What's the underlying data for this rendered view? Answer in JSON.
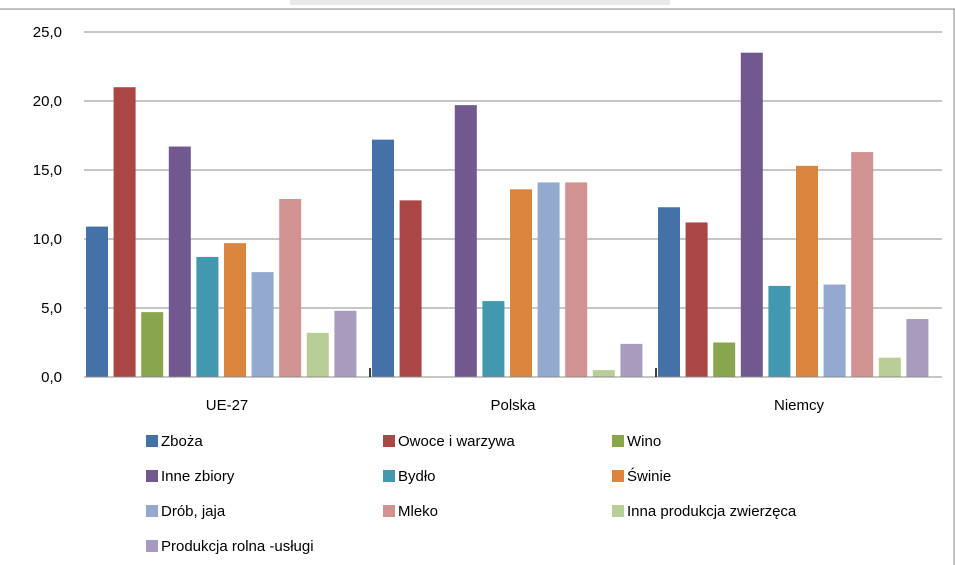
{
  "chart_data": {
    "type": "bar",
    "categories": [
      "UE-27",
      "Polska",
      "Niemcy"
    ],
    "ylim": [
      0,
      25
    ],
    "yticks": [
      "0,0",
      "5,0",
      "10,0",
      "15,0",
      "20,0",
      "25,0"
    ],
    "grid": true,
    "legend_position": "bottom",
    "series": [
      {
        "name": "Zboża",
        "color": "#4472A8",
        "values": [
          10.9,
          17.2,
          12.3
        ]
      },
      {
        "name": "Owoce i warzywa",
        "color": "#AA4643",
        "values": [
          21.0,
          12.8,
          11.2
        ]
      },
      {
        "name": "Wino",
        "color": "#89A54E",
        "values": [
          4.7,
          0.0,
          2.5
        ]
      },
      {
        "name": "Inne zbiory",
        "color": "#71588F",
        "values": [
          16.7,
          19.7,
          23.5
        ]
      },
      {
        "name": "Bydło",
        "color": "#4198AF",
        "values": [
          8.7,
          5.5,
          6.6
        ]
      },
      {
        "name": "Świnie",
        "color": "#DB843D",
        "values": [
          9.7,
          13.6,
          15.3
        ]
      },
      {
        "name": "Drób, jaja",
        "color": "#93A9CF",
        "values": [
          7.6,
          14.1,
          6.7
        ]
      },
      {
        "name": "Mleko",
        "color": "#D19392",
        "values": [
          12.9,
          14.1,
          16.3
        ]
      },
      {
        "name": "Inna produkcja zwierzęca",
        "color": "#B9CD96",
        "values": [
          3.2,
          0.5,
          1.4
        ]
      },
      {
        "name": "Produkcja rolna -usługi",
        "color": "#A99BBD",
        "values": [
          4.8,
          2.4,
          4.2
        ]
      }
    ]
  }
}
